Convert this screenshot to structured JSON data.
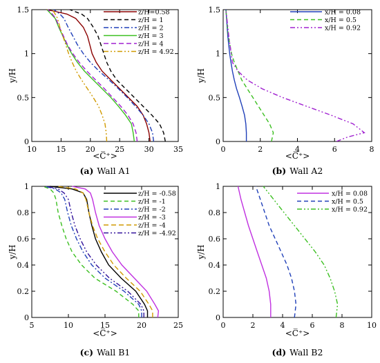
{
  "chart_data": [
    {
      "type": "line",
      "caption_tag": "(a)",
      "caption_text": "Wall A1",
      "xlabel": "<C̅⁺>",
      "ylabel": "y/H",
      "xlim": [
        10,
        35
      ],
      "ylim": [
        0,
        1.5
      ],
      "xticks": [
        10,
        15,
        20,
        25,
        30,
        35
      ],
      "yticks": [
        0,
        0.5,
        1,
        1.5
      ],
      "legend_position": "top-right",
      "series": [
        {
          "name": "z/H=0.58",
          "color": "#8b0000",
          "dash": "",
          "x": [
            30.2,
            30.0,
            29.6,
            29.0,
            28.0,
            26.5,
            25.0,
            23.5,
            22.0,
            21.0,
            20.3,
            19.9,
            19.5,
            18.8,
            17.5,
            16.0,
            14.0,
            12.5
          ],
          "y": [
            0,
            0.1,
            0.2,
            0.3,
            0.4,
            0.5,
            0.6,
            0.7,
            0.8,
            0.9,
            1.0,
            1.1,
            1.2,
            1.3,
            1.4,
            1.45,
            1.48,
            1.5
          ]
        },
        {
          "name": "z/H = 1",
          "color": "#000000",
          "dash": "6,4",
          "x": [
            32.8,
            32.5,
            31.8,
            30.5,
            29.0,
            27.5,
            26.0,
            24.5,
            23.5,
            22.8,
            22.3,
            21.8,
            21.3,
            20.5,
            19.5,
            18.5,
            16.5
          ],
          "y": [
            0,
            0.1,
            0.2,
            0.3,
            0.4,
            0.5,
            0.6,
            0.7,
            0.8,
            0.9,
            1.0,
            1.1,
            1.2,
            1.3,
            1.4,
            1.45,
            1.5
          ]
        },
        {
          "name": "z/H = 2",
          "color": "#1f3fb8",
          "dash": "7,3,2,3",
          "x": [
            30.8,
            30.6,
            30.0,
            29.0,
            27.7,
            26.3,
            24.8,
            23.2,
            21.5,
            20.0,
            18.8,
            17.8,
            17.0,
            16.2,
            15.5,
            14.8,
            13.8
          ],
          "y": [
            0,
            0.1,
            0.2,
            0.3,
            0.4,
            0.5,
            0.6,
            0.7,
            0.8,
            0.9,
            1.0,
            1.1,
            1.2,
            1.3,
            1.4,
            1.45,
            1.5
          ]
        },
        {
          "name": "z/H = 3",
          "color": "#3bbf20",
          "dash": "",
          "x": [
            27.5,
            27.3,
            27.0,
            26.0,
            24.8,
            23.5,
            22.0,
            20.5,
            19.0,
            17.8,
            16.8,
            16.0,
            15.3,
            14.6,
            14.0,
            13.3,
            12.6
          ],
          "y": [
            0,
            0.1,
            0.2,
            0.3,
            0.4,
            0.5,
            0.6,
            0.7,
            0.8,
            0.9,
            1.0,
            1.1,
            1.2,
            1.3,
            1.4,
            1.45,
            1.5
          ]
        },
        {
          "name": "z/H = 4",
          "color": "#a020d0",
          "dash": "7,4",
          "x": [
            28.0,
            27.8,
            27.3,
            26.4,
            25.2,
            23.8,
            22.4,
            20.9,
            19.4,
            18.1,
            17.0,
            16.1,
            15.4,
            14.7,
            14.1,
            13.5,
            12.8
          ],
          "y": [
            0,
            0.1,
            0.2,
            0.3,
            0.4,
            0.5,
            0.6,
            0.7,
            0.8,
            0.9,
            1.0,
            1.1,
            1.2,
            1.3,
            1.4,
            1.45,
            1.5
          ]
        },
        {
          "name": "z/H = 4.92",
          "color": "#d09a00",
          "dash": "7,3,2,3,2,3",
          "x": [
            22.8,
            22.7,
            22.5,
            22.0,
            21.4,
            20.5,
            19.5,
            18.5,
            17.6,
            16.9,
            16.3,
            15.8,
            15.3,
            14.8,
            14.4,
            14.0,
            13.5
          ],
          "y": [
            0,
            0.1,
            0.2,
            0.3,
            0.4,
            0.5,
            0.6,
            0.7,
            0.8,
            0.9,
            1.0,
            1.1,
            1.2,
            1.3,
            1.4,
            1.45,
            1.5
          ]
        }
      ]
    },
    {
      "type": "line",
      "caption_tag": "(b)",
      "caption_text": "Wall A2",
      "xlabel": "<C̅⁺>",
      "ylabel": "y/H",
      "xlim": [
        0,
        8
      ],
      "ylim": [
        0,
        1.5
      ],
      "xticks": [
        0,
        2,
        4,
        6,
        8
      ],
      "yticks": [
        0,
        0.5,
        1,
        1.5
      ],
      "legend_position": "top-right",
      "series": [
        {
          "name": "x/H = 0.08",
          "color": "#1f3fb8",
          "dash": "",
          "x": [
            1.25,
            1.25,
            1.22,
            1.15,
            1.02,
            0.88,
            0.72,
            0.6,
            0.5,
            0.42,
            0.35,
            0.25,
            0.15
          ],
          "y": [
            0,
            0.1,
            0.2,
            0.3,
            0.4,
            0.5,
            0.6,
            0.7,
            0.8,
            0.9,
            1.0,
            1.2,
            1.5
          ]
        },
        {
          "name": "x/H = 0.5",
          "color": "#3bbf20",
          "dash": "6,4",
          "x": [
            2.6,
            2.7,
            2.5,
            2.2,
            1.9,
            1.6,
            1.3,
            1.0,
            0.8,
            0.6,
            0.45,
            0.28,
            0.15
          ],
          "y": [
            0,
            0.1,
            0.2,
            0.3,
            0.4,
            0.5,
            0.6,
            0.7,
            0.8,
            0.9,
            1.0,
            1.2,
            1.5
          ]
        },
        {
          "name": "x/H = 0.92",
          "color": "#a020d0",
          "dash": "7,3,2,3,2,3",
          "x": [
            6.1,
            6.7,
            7.6,
            7.0,
            5.8,
            4.5,
            3.2,
            2.1,
            1.3,
            0.8,
            0.5,
            0.3,
            0.15
          ],
          "y": [
            0,
            0.05,
            0.1,
            0.2,
            0.3,
            0.4,
            0.5,
            0.6,
            0.7,
            0.8,
            0.9,
            1.2,
            1.5
          ]
        }
      ]
    },
    {
      "type": "line",
      "caption_tag": "(c)",
      "caption_text": "Wall B1",
      "xlabel": "<C̅⁺>",
      "ylabel": "y/H",
      "xlim": [
        5,
        25
      ],
      "ylim": [
        0,
        1
      ],
      "xticks": [
        5,
        10,
        15,
        20,
        25
      ],
      "yticks": [
        0,
        0.2,
        0.4,
        0.6,
        0.8,
        1
      ],
      "legend_position": "top-right",
      "series": [
        {
          "name": "z/H = -0.58",
          "color": "#000000",
          "dash": "",
          "x": [
            20.8,
            20.8,
            20.4,
            19.2,
            17.2,
            15.5,
            14.5,
            13.7,
            13.2,
            12.8,
            12.5,
            12.0,
            10.5,
            7.5
          ],
          "y": [
            0,
            0.05,
            0.1,
            0.2,
            0.3,
            0.4,
            0.5,
            0.6,
            0.7,
            0.8,
            0.9,
            0.95,
            0.98,
            1.0
          ]
        },
        {
          "name": "z/H = -1",
          "color": "#3bbf20",
          "dash": "6,4",
          "x": [
            19.6,
            19.6,
            18.8,
            16.5,
            13.6,
            11.8,
            10.5,
            9.7,
            9.1,
            8.6,
            8.3,
            8.0,
            7.5,
            6.5
          ],
          "y": [
            0,
            0.05,
            0.1,
            0.2,
            0.3,
            0.4,
            0.5,
            0.6,
            0.7,
            0.8,
            0.9,
            0.95,
            0.98,
            1.0
          ]
        },
        {
          "name": "z/H = -2",
          "color": "#1f3fb8",
          "dash": "7,3,2,3",
          "x": [
            20.0,
            20.0,
            19.6,
            17.6,
            15.0,
            13.2,
            12.0,
            11.1,
            10.4,
            9.9,
            9.5,
            9.0,
            8.2,
            6.8
          ],
          "y": [
            0,
            0.05,
            0.1,
            0.2,
            0.3,
            0.4,
            0.5,
            0.6,
            0.7,
            0.8,
            0.9,
            0.95,
            0.98,
            1.0
          ]
        },
        {
          "name": "z/H = -3",
          "color": "#c030e0",
          "dash": "",
          "x": [
            22.2,
            22.3,
            21.8,
            20.7,
            19.0,
            17.3,
            16.0,
            15.0,
            14.2,
            13.7,
            13.3,
            13.0,
            12.3,
            10.5
          ],
          "y": [
            0,
            0.05,
            0.1,
            0.2,
            0.3,
            0.4,
            0.5,
            0.6,
            0.7,
            0.8,
            0.9,
            0.95,
            0.98,
            1.0
          ]
        },
        {
          "name": "z/H = -4",
          "color": "#d09a00",
          "dash": "7,4",
          "x": [
            21.5,
            21.5,
            21.0,
            19.8,
            17.9,
            16.2,
            15.0,
            14.0,
            13.3,
            12.8,
            12.4,
            12.0,
            11.0,
            8.5
          ],
          "y": [
            0,
            0.05,
            0.1,
            0.2,
            0.3,
            0.4,
            0.5,
            0.6,
            0.7,
            0.8,
            0.9,
            0.95,
            0.98,
            1.0
          ]
        },
        {
          "name": "z/H = -4.92",
          "color": "#30109a",
          "dash": "7,3,2,3,2,3",
          "x": [
            20.3,
            20.3,
            19.9,
            18.1,
            15.6,
            13.8,
            12.5,
            11.6,
            10.9,
            10.4,
            10.0,
            9.4,
            8.6,
            7.0
          ],
          "y": [
            0,
            0.05,
            0.1,
            0.2,
            0.3,
            0.4,
            0.5,
            0.6,
            0.7,
            0.8,
            0.9,
            0.95,
            0.98,
            1.0
          ]
        }
      ]
    },
    {
      "type": "line",
      "caption_tag": "(d)",
      "caption_text": "Wall B2",
      "xlabel": "<C̅⁺>",
      "ylabel": "y/H",
      "xlim": [
        0,
        10
      ],
      "ylim": [
        0,
        1
      ],
      "xticks": [
        0,
        2,
        4,
        6,
        8,
        10
      ],
      "yticks": [
        0,
        0.2,
        0.4,
        0.6,
        0.8,
        1
      ],
      "legend_position": "top-right",
      "series": [
        {
          "name": "x/H = 0.08",
          "color": "#c030e0",
          "dash": "",
          "x": [
            3.2,
            3.2,
            3.1,
            2.9,
            2.6,
            2.3,
            2.0,
            1.7,
            1.45,
            1.2,
            1.0
          ],
          "y": [
            0,
            0.1,
            0.2,
            0.3,
            0.4,
            0.5,
            0.6,
            0.7,
            0.8,
            0.9,
            1.0
          ]
        },
        {
          "name": "x/H = 0.5",
          "color": "#1f3fb8",
          "dash": "6,4",
          "x": [
            4.8,
            4.9,
            4.8,
            4.6,
            4.3,
            3.9,
            3.5,
            3.1,
            2.8,
            2.5,
            2.2
          ],
          "y": [
            0,
            0.1,
            0.2,
            0.3,
            0.4,
            0.5,
            0.6,
            0.7,
            0.8,
            0.9,
            1.0
          ]
        },
        {
          "name": "x/H = 0.92",
          "color": "#3bbf20",
          "dash": "7,3,2,3,2,3",
          "x": [
            7.6,
            7.7,
            7.5,
            7.2,
            6.8,
            6.2,
            5.5,
            4.8,
            4.1,
            3.4,
            2.7
          ],
          "y": [
            0,
            0.1,
            0.2,
            0.3,
            0.4,
            0.5,
            0.6,
            0.7,
            0.8,
            0.9,
            1.0
          ]
        }
      ]
    }
  ]
}
